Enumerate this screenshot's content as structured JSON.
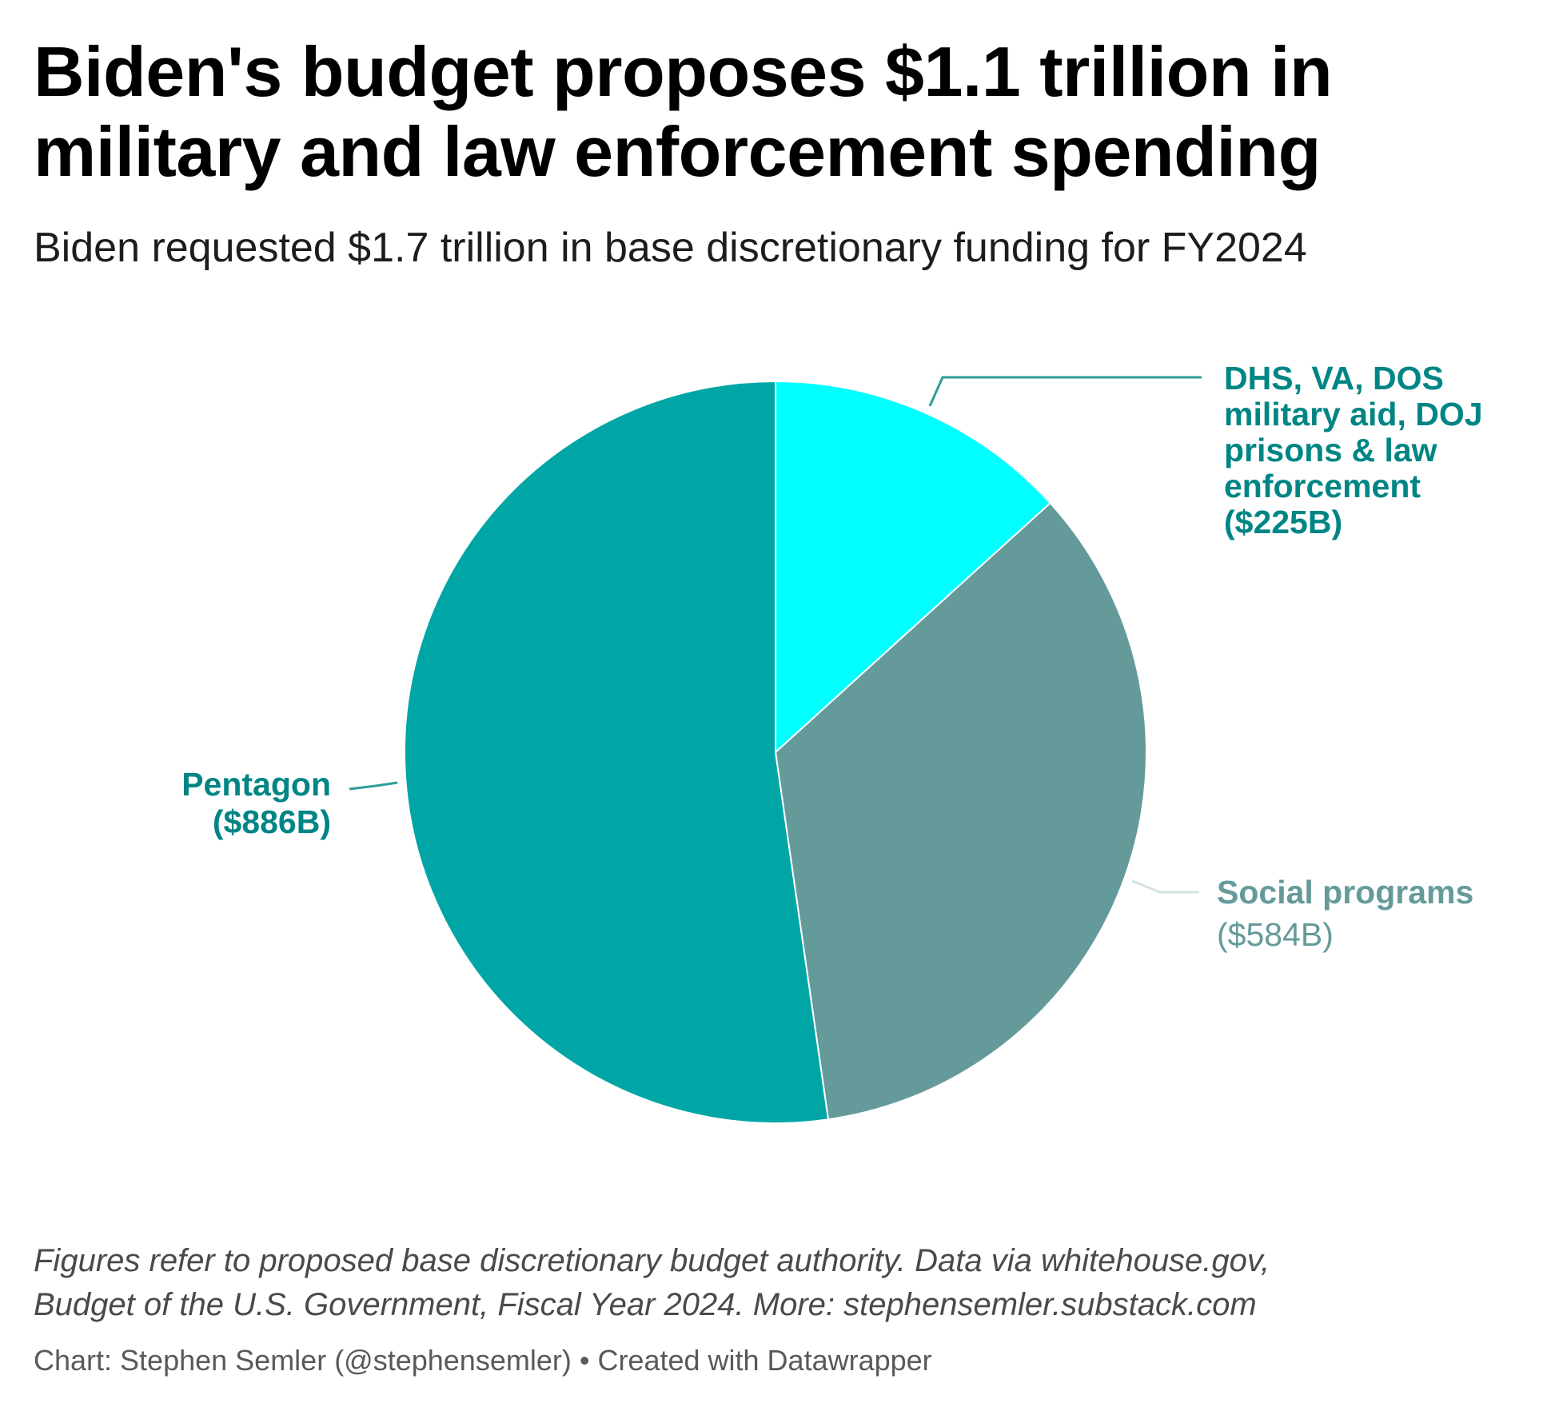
{
  "header": {
    "title": "Biden's budget proposes $1.1 trillion in military and law enforcement spending",
    "subtitle": "Biden requested $1.7 trillion in base discretionary funding for FY2024"
  },
  "chart_data": {
    "type": "pie",
    "title": "Biden's budget proposes $1.1 trillion in military and law enforcement spending",
    "subtitle": "Biden requested $1.7 trillion in base discretionary funding for FY2024",
    "units": "billions USD",
    "start": "top",
    "direction": "clockwise",
    "slices": [
      {
        "key": "dhs",
        "name": "DHS, VA, DOS military aid, DOJ prisons & law enforcement",
        "value": 225,
        "label_lines": [
          "DHS, VA, DOS",
          "military aid, DOJ",
          "prisons & law",
          "enforcement",
          "($225B)"
        ],
        "color": "#00ffff",
        "label_color": "#008585",
        "label_position": "top-right"
      },
      {
        "key": "social",
        "name": "Social programs",
        "value": 584,
        "label_lines": [
          "Social programs",
          "($584B)"
        ],
        "color": "#659a9a",
        "label_color": "#659a9a",
        "leader_color": "#d3e3e3",
        "label_position": "right"
      },
      {
        "key": "pentagon",
        "name": "Pentagon",
        "value": 886,
        "label_lines": [
          "Pentagon",
          "($886B)"
        ],
        "color": "#00a6a6",
        "label_color": "#008585",
        "label_position": "left"
      }
    ],
    "total": 1695
  },
  "footer": {
    "notes_line1": "Figures refer to proposed base discretionary budget authority. Data via whitehouse.gov,",
    "notes_line2": "Budget of the U.S. Government, Fiscal Year 2024. More: stephensemler.substack.com",
    "credit": "Chart: Stephen Semler (@stephensemler) • Created with Datawrapper"
  }
}
